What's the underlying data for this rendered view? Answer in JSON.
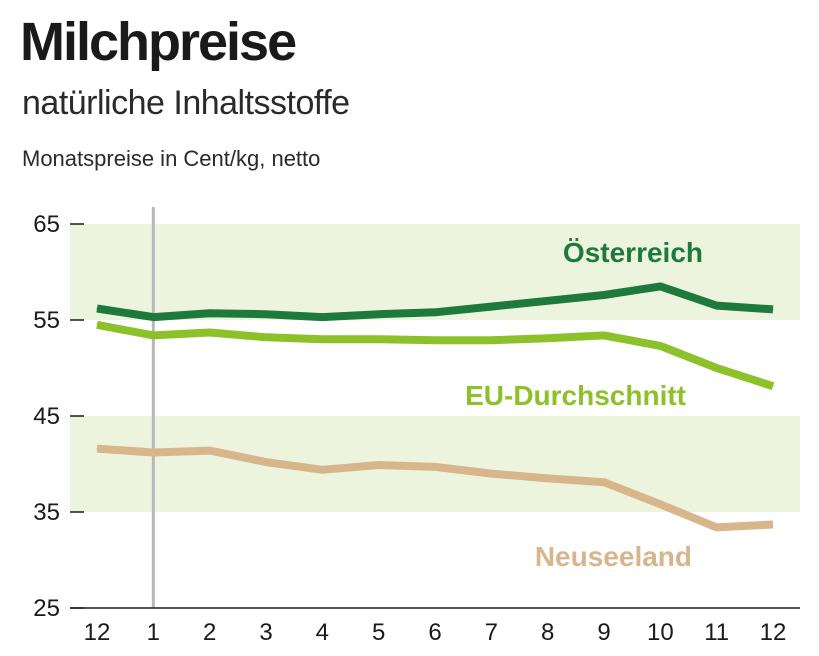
{
  "chart_data": {
    "type": "line",
    "title": "Milchpreise",
    "subtitle": "natürliche Inhaltsstoffe",
    "ylabel": "Monatspreise in Cent/kg, netto",
    "xlabel": "",
    "categories": [
      "12",
      "1",
      "2",
      "3",
      "4",
      "5",
      "6",
      "7",
      "8",
      "9",
      "10",
      "11",
      "12"
    ],
    "ylim": [
      25,
      65
    ],
    "yticks": [
      "65",
      "55",
      "45",
      "35",
      "25"
    ],
    "bands": [
      [
        55,
        65
      ],
      [
        35,
        45
      ]
    ],
    "year_marker_category": "1",
    "series": [
      {
        "name": "Österreich",
        "color": "#1e7a3c",
        "values": [
          56.2,
          55.3,
          55.7,
          55.6,
          55.3,
          55.6,
          55.8,
          56.4,
          57.0,
          57.6,
          58.5,
          56.5,
          56.1
        ]
      },
      {
        "name": "EU-Durchschnitt",
        "color": "#8cc12a",
        "values": [
          54.5,
          53.4,
          53.7,
          53.2,
          53.0,
          53.0,
          52.9,
          52.9,
          53.1,
          53.4,
          52.3,
          50.0,
          48.1
        ]
      },
      {
        "name": "Neuseeland",
        "color": "#d8b68c",
        "values": [
          41.6,
          41.2,
          41.4,
          40.2,
          39.4,
          39.9,
          39.7,
          39.0,
          38.5,
          38.1,
          35.8,
          33.4,
          33.7
        ]
      }
    ],
    "colors": {
      "band": "#edf4dd",
      "axis": "#1a1a1a",
      "marker": "#b8b8b8"
    }
  }
}
